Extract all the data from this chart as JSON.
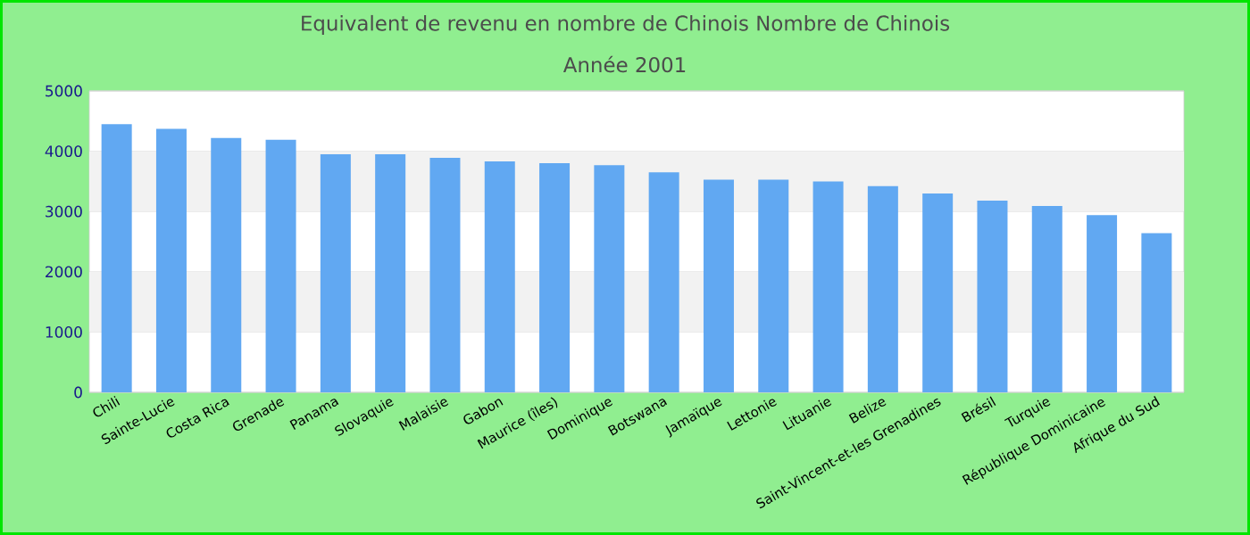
{
  "chart_data": {
    "type": "bar",
    "title": "Equivalent de revenu en nombre de Chinois  Nombre de Chinois",
    "subtitle": "Année 2001",
    "categories": [
      "Chili",
      "Sainte-Lucie",
      "Costa Rica",
      "Grenade",
      "Panama",
      "Slovaquie",
      "Malaisie",
      "Gabon",
      "Maurice (îles)",
      "Dominique",
      "Botswana",
      "Jamaïque",
      "Lettonie",
      "Lituanie",
      "Belize",
      "Saint-Vincent-et-les Grenadines",
      "Brésil",
      "Turquie",
      "République Dominicaine",
      "Afrique du Sud"
    ],
    "values": [
      4450,
      4370,
      4220,
      4190,
      3950,
      3950,
      3890,
      3830,
      3800,
      3770,
      3650,
      3530,
      3530,
      3500,
      3420,
      3300,
      3180,
      3090,
      2940,
      2640
    ],
    "color": "#61a8f2",
    "ylim": [
      0,
      5000
    ],
    "yticks": [
      0,
      1000,
      2000,
      3000,
      4000,
      5000
    ],
    "grid": "y"
  }
}
